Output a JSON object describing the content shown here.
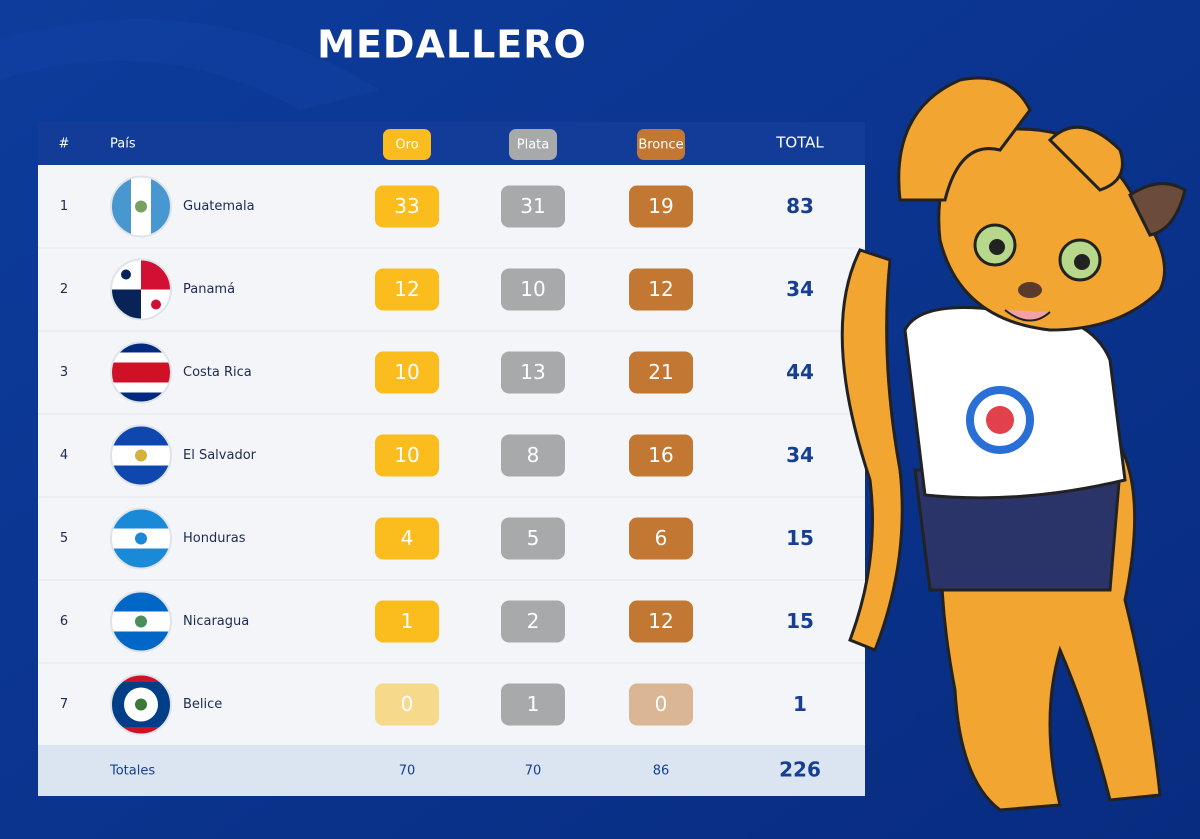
{
  "header": {
    "title": "MEDALLERO"
  },
  "table": {
    "columns": [
      "#",
      "País",
      "Oro",
      "Plata",
      "Bronce",
      "TOTAL"
    ],
    "rows": [
      [
        1,
        "Guatemala",
        33,
        31,
        19,
        83
      ],
      [
        2,
        "Panamá",
        12,
        10,
        12,
        34
      ],
      [
        3,
        "Costa Rica",
        10,
        13,
        21,
        44
      ],
      [
        4,
        "El Salvador",
        10,
        8,
        16,
        34
      ],
      [
        5,
        "Honduras",
        4,
        5,
        6,
        15
      ],
      [
        6,
        "Nicaragua",
        1,
        2,
        12,
        15
      ],
      [
        7,
        "Belice",
        0,
        1,
        0,
        1
      ]
    ],
    "totals": [
      "Totales",
      70,
      70,
      86,
      226
    ]
  }
}
